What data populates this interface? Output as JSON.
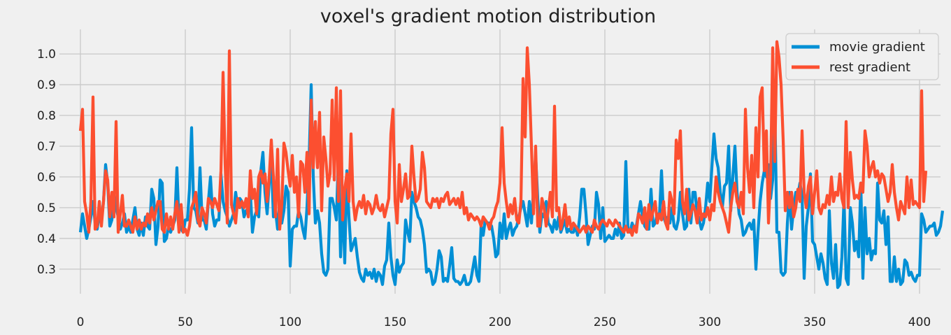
{
  "chart_data": {
    "type": "line",
    "title": "voxel's gradient motion distribution",
    "xlabel": "",
    "ylabel": "",
    "xlim": [
      -10,
      410
    ],
    "ylim": [
      0.22,
      1.08
    ],
    "xticks": [
      0,
      50,
      100,
      150,
      200,
      250,
      300,
      350,
      400
    ],
    "yticks": [
      0.3,
      0.4,
      0.5,
      0.6,
      0.7,
      0.8,
      0.9,
      1.0
    ],
    "grid": true,
    "legend_position": "top-right",
    "x_start": 0,
    "x_step": 1,
    "series": [
      {
        "name": "movie gradient",
        "color": "#008fd5",
        "values": [
          0.42,
          0.48,
          0.44,
          0.4,
          0.43,
          0.47,
          0.52,
          0.45,
          0.43,
          0.48,
          0.46,
          0.52,
          0.64,
          0.58,
          0.44,
          0.46,
          0.55,
          0.5,
          0.47,
          0.43,
          0.45,
          0.48,
          0.42,
          0.44,
          0.42,
          0.46,
          0.5,
          0.43,
          0.41,
          0.45,
          0.41,
          0.47,
          0.44,
          0.43,
          0.56,
          0.53,
          0.38,
          0.44,
          0.59,
          0.58,
          0.39,
          0.4,
          0.44,
          0.42,
          0.44,
          0.46,
          0.63,
          0.45,
          0.43,
          0.42,
          0.46,
          0.46,
          0.56,
          0.76,
          0.5,
          0.49,
          0.45,
          0.63,
          0.46,
          0.46,
          0.43,
          0.52,
          0.6,
          0.48,
          0.44,
          0.46,
          0.46,
          0.61,
          0.52,
          0.49,
          0.47,
          0.44,
          0.46,
          0.48,
          0.55,
          0.5,
          0.53,
          0.52,
          0.47,
          0.49,
          0.5,
          0.55,
          0.42,
          0.47,
          0.49,
          0.47,
          0.62,
          0.68,
          0.55,
          0.48,
          0.58,
          0.66,
          0.47,
          0.49,
          0.43,
          0.52,
          0.45,
          0.49,
          0.57,
          0.55,
          0.31,
          0.43,
          0.44,
          0.44,
          0.49,
          0.47,
          0.43,
          0.4,
          0.5,
          0.65,
          0.9,
          0.6,
          0.45,
          0.49,
          0.45,
          0.35,
          0.29,
          0.28,
          0.3,
          0.53,
          0.53,
          0.5,
          0.46,
          0.67,
          0.34,
          0.53,
          0.32,
          0.62,
          0.47,
          0.36,
          0.38,
          0.4,
          0.34,
          0.29,
          0.27,
          0.26,
          0.3,
          0.28,
          0.29,
          0.27,
          0.3,
          0.26,
          0.29,
          0.28,
          0.25,
          0.31,
          0.33,
          0.45,
          0.34,
          0.28,
          0.25,
          0.33,
          0.29,
          0.31,
          0.32,
          0.46,
          0.42,
          0.39,
          0.55,
          0.52,
          0.5,
          0.47,
          0.46,
          0.43,
          0.38,
          0.29,
          0.3,
          0.29,
          0.25,
          0.26,
          0.3,
          0.36,
          0.34,
          0.26,
          0.27,
          0.26,
          0.31,
          0.37,
          0.27,
          0.26,
          0.26,
          0.25,
          0.26,
          0.28,
          0.25,
          0.25,
          0.26,
          0.3,
          0.34,
          0.28,
          0.26,
          0.44,
          0.41,
          0.46,
          0.45,
          0.45,
          0.44,
          0.4,
          0.34,
          0.35,
          0.45,
          0.4,
          0.48,
          0.4,
          0.43,
          0.45,
          0.41,
          0.43,
          0.44,
          0.47,
          0.5,
          0.52,
          0.48,
          0.44,
          0.52,
          0.45,
          0.56,
          0.67,
          0.53,
          0.42,
          0.48,
          0.47,
          0.52,
          0.45,
          0.44,
          0.42,
          0.46,
          0.43,
          0.47,
          0.42,
          0.44,
          0.46,
          0.42,
          0.43,
          0.42,
          0.42,
          0.44,
          0.41,
          0.47,
          0.56,
          0.56,
          0.48,
          0.38,
          0.41,
          0.44,
          0.43,
          0.55,
          0.51,
          0.4,
          0.5,
          0.39,
          0.4,
          0.41,
          0.4,
          0.4,
          0.43,
          0.41,
          0.45,
          0.4,
          0.41,
          0.65,
          0.43,
          0.42,
          0.45,
          0.43,
          0.44,
          0.48,
          0.52,
          0.47,
          0.44,
          0.43,
          0.43,
          0.56,
          0.44,
          0.45,
          0.48,
          0.47,
          0.62,
          0.47,
          0.45,
          0.47,
          0.45,
          0.5,
          0.44,
          0.43,
          0.46,
          0.55,
          0.48,
          0.43,
          0.44,
          0.56,
          0.45,
          0.55,
          0.55,
          0.48,
          0.46,
          0.43,
          0.45,
          0.5,
          0.58,
          0.52,
          0.63,
          0.74,
          0.66,
          0.63,
          0.55,
          0.5,
          0.57,
          0.58,
          0.7,
          0.49,
          0.6,
          0.7,
          0.55,
          0.48,
          0.46,
          0.41,
          0.42,
          0.44,
          0.45,
          0.43,
          0.46,
          0.3,
          0.42,
          0.52,
          0.58,
          0.62,
          0.6,
          0.64,
          0.53,
          0.59,
          0.84,
          0.42,
          0.42,
          0.29,
          0.28,
          0.29,
          0.45,
          0.55,
          0.43,
          0.5,
          0.55,
          0.54,
          0.58,
          0.54,
          0.27,
          0.44,
          0.5,
          0.61,
          0.39,
          0.38,
          0.34,
          0.3,
          0.35,
          0.32,
          0.27,
          0.25,
          0.49,
          0.32,
          0.27,
          0.38,
          0.24,
          0.25,
          0.34,
          0.53,
          0.27,
          0.25,
          0.5,
          0.45,
          0.36,
          0.39,
          0.34,
          0.58,
          0.27,
          0.5,
          0.35,
          0.4,
          0.33,
          0.36,
          0.35,
          0.58,
          0.46,
          0.45,
          0.49,
          0.38,
          0.47,
          0.26,
          0.26,
          0.34,
          0.26,
          0.3,
          0.25,
          0.26,
          0.33,
          0.32,
          0.28,
          0.29,
          0.27,
          0.26,
          0.28,
          0.28,
          0.48,
          0.46,
          0.42,
          0.43,
          0.44,
          0.44,
          0.45,
          0.41,
          0.42,
          0.44,
          0.49
        ]
      },
      {
        "name": "rest gradient",
        "color": "#fc4f30",
        "values": [
          0.75,
          0.82,
          0.52,
          0.48,
          0.42,
          0.52,
          0.86,
          0.43,
          0.44,
          0.52,
          0.44,
          0.52,
          0.62,
          0.59,
          0.47,
          0.55,
          0.47,
          0.78,
          0.42,
          0.48,
          0.54,
          0.44,
          0.44,
          0.46,
          0.44,
          0.42,
          0.47,
          0.43,
          0.46,
          0.43,
          0.45,
          0.44,
          0.48,
          0.45,
          0.5,
          0.46,
          0.49,
          0.52,
          0.52,
          0.43,
          0.42,
          0.48,
          0.43,
          0.47,
          0.43,
          0.48,
          0.52,
          0.42,
          0.51,
          0.42,
          0.43,
          0.41,
          0.44,
          0.5,
          0.52,
          0.55,
          0.46,
          0.44,
          0.5,
          0.48,
          0.45,
          0.53,
          0.52,
          0.5,
          0.53,
          0.51,
          0.49,
          0.62,
          0.94,
          0.64,
          0.45,
          1.01,
          0.51,
          0.48,
          0.45,
          0.53,
          0.5,
          0.52,
          0.5,
          0.53,
          0.47,
          0.62,
          0.53,
          0.56,
          0.48,
          0.6,
          0.62,
          0.58,
          0.61,
          0.52,
          0.6,
          0.72,
          0.6,
          0.47,
          0.69,
          0.43,
          0.51,
          0.71,
          0.68,
          0.62,
          0.57,
          0.67,
          0.55,
          0.6,
          0.47,
          0.65,
          0.64,
          0.55,
          0.68,
          0.48,
          0.85,
          0.63,
          0.78,
          0.63,
          0.81,
          0.49,
          0.73,
          0.66,
          0.57,
          0.61,
          0.85,
          0.59,
          0.89,
          0.52,
          0.88,
          0.46,
          0.56,
          0.61,
          0.52,
          0.74,
          0.52,
          0.46,
          0.5,
          0.52,
          0.5,
          0.54,
          0.48,
          0.52,
          0.51,
          0.48,
          0.5,
          0.54,
          0.5,
          0.49,
          0.51,
          0.47,
          0.5,
          0.53,
          0.74,
          0.82,
          0.52,
          0.45,
          0.64,
          0.52,
          0.56,
          0.61,
          0.53,
          0.54,
          0.7,
          0.6,
          0.52,
          0.53,
          0.56,
          0.68,
          0.63,
          0.52,
          0.51,
          0.5,
          0.53,
          0.52,
          0.53,
          0.5,
          0.53,
          0.52,
          0.54,
          0.55,
          0.51,
          0.52,
          0.53,
          0.51,
          0.53,
          0.5,
          0.55,
          0.48,
          0.5,
          0.46,
          0.48,
          0.47,
          0.46,
          0.47,
          0.46,
          0.44,
          0.47,
          0.46,
          0.45,
          0.43,
          0.46,
          0.47,
          0.5,
          0.52,
          0.58,
          0.76,
          0.58,
          0.52,
          0.47,
          0.51,
          0.48,
          0.53,
          0.46,
          0.45,
          0.52,
          0.92,
          0.73,
          1.02,
          0.9,
          0.7,
          0.48,
          0.7,
          0.44,
          0.44,
          0.53,
          0.5,
          0.44,
          0.49,
          0.55,
          0.47,
          0.83,
          0.49,
          0.5,
          0.43,
          0.46,
          0.51,
          0.44,
          0.47,
          0.43,
          0.45,
          0.44,
          0.43,
          0.42,
          0.43,
          0.44,
          0.42,
          0.44,
          0.43,
          0.42,
          0.46,
          0.44,
          0.43,
          0.45,
          0.46,
          0.45,
          0.44,
          0.46,
          0.45,
          0.44,
          0.46,
          0.45,
          0.44,
          0.43,
          0.42,
          0.44,
          0.42,
          0.43,
          0.41,
          0.44,
          0.42,
          0.48,
          0.47,
          0.45,
          0.5,
          0.43,
          0.51,
          0.46,
          0.49,
          0.52,
          0.45,
          0.48,
          0.46,
          0.52,
          0.45,
          0.43,
          0.55,
          0.52,
          0.48,
          0.72,
          0.66,
          0.75,
          0.52,
          0.48,
          0.56,
          0.46,
          0.48,
          0.51,
          0.49,
          0.45,
          0.53,
          0.46,
          0.48,
          0.47,
          0.5,
          0.46,
          0.51,
          0.49,
          0.6,
          0.55,
          0.52,
          0.5,
          0.48,
          0.45,
          0.42,
          0.5,
          0.55,
          0.58,
          0.52,
          0.5,
          0.55,
          0.48,
          0.82,
          0.63,
          0.55,
          0.67,
          0.5,
          0.76,
          0.6,
          0.86,
          0.89,
          0.62,
          0.75,
          0.45,
          0.6,
          1.02,
          0.65,
          1.04,
          0.99,
          0.9,
          0.72,
          0.49,
          0.55,
          0.5,
          0.55,
          0.47,
          0.5,
          0.56,
          0.52,
          0.75,
          0.55,
          0.5,
          0.57,
          0.6,
          0.48,
          0.55,
          0.62,
          0.5,
          0.48,
          0.51,
          0.5,
          0.54,
          0.51,
          0.6,
          0.52,
          0.55,
          0.54,
          0.61,
          0.53,
          0.5,
          0.78,
          0.5,
          0.68,
          0.59,
          0.53,
          0.54,
          0.53,
          0.58,
          0.55,
          0.75,
          0.7,
          0.6,
          0.63,
          0.65,
          0.6,
          0.62,
          0.58,
          0.61,
          0.6,
          0.56,
          0.52,
          0.55,
          0.64,
          0.55,
          0.5,
          0.46,
          0.52,
          0.5,
          0.48,
          0.6,
          0.5,
          0.59,
          0.51,
          0.52,
          0.51,
          0.5,
          0.88,
          0.52,
          0.62
        ]
      }
    ]
  }
}
